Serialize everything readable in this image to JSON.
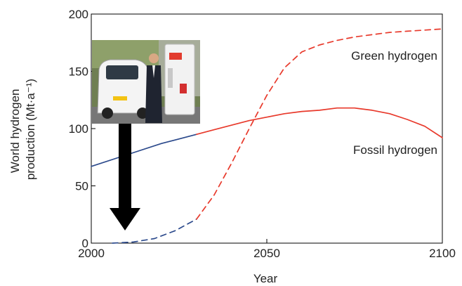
{
  "chart_data": {
    "type": "line",
    "title": "",
    "xlabel": "Year",
    "ylabel": "World hydrogen production (Mt·a⁻¹)",
    "ylabel_lines": [
      "World hydrogen",
      "production (Mt·a⁻¹)"
    ],
    "xlim": [
      2000,
      2100
    ],
    "ylim": [
      0,
      200
    ],
    "x_ticks": [
      2000,
      2050,
      2100
    ],
    "y_ticks": [
      0,
      50,
      100,
      150,
      200
    ],
    "grid": false,
    "legend": "none",
    "series": [
      {
        "name": "Fossil hydrogen",
        "historical": {
          "x": [
            2000,
            2010,
            2020,
            2030
          ],
          "y": [
            67,
            77,
            87,
            95
          ],
          "color": "#2c4a8c",
          "style": "solid"
        },
        "projected": {
          "x": [
            2030,
            2035,
            2040,
            2045,
            2050,
            2055,
            2060,
            2065,
            2070,
            2075,
            2080,
            2085,
            2090,
            2095,
            2100
          ],
          "y": [
            95,
            99,
            103,
            107,
            110,
            113,
            115,
            116,
            118,
            118,
            116,
            113,
            108,
            102,
            92
          ],
          "color": "#e8392b",
          "style": "solid"
        }
      },
      {
        "name": "Green hydrogen",
        "historical": {
          "x": [
            2006,
            2012,
            2018,
            2024,
            2030
          ],
          "y": [
            0,
            1,
            4,
            11,
            21
          ],
          "color": "#2c4a8c",
          "style": "dashed"
        },
        "projected": {
          "x": [
            2030,
            2035,
            2040,
            2045,
            2050,
            2055,
            2060,
            2065,
            2070,
            2075,
            2080,
            2085,
            2090,
            2095,
            2100
          ],
          "y": [
            21,
            42,
            70,
            100,
            129,
            153,
            167,
            173,
            177,
            180,
            182,
            184,
            185,
            186,
            187
          ],
          "color": "#e8392b",
          "style": "dashed"
        }
      }
    ]
  }
}
